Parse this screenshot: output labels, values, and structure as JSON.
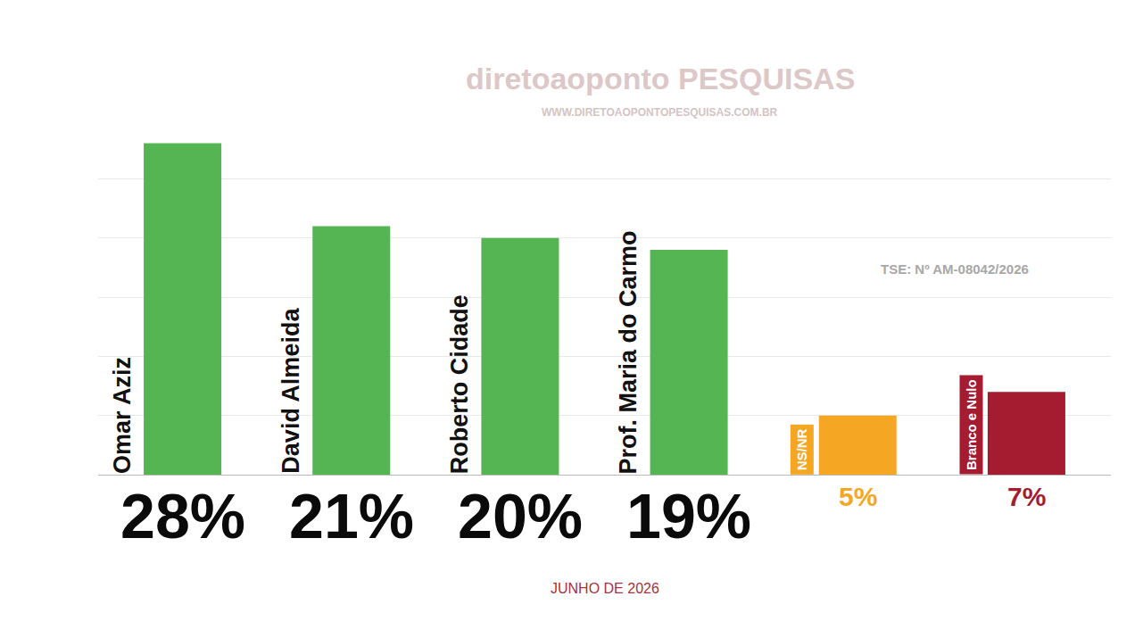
{
  "chart_data": {
    "type": "bar",
    "categories": [
      "Omar Aziz",
      "David Almeida",
      "Roberto Cidade",
      "Prof. Maria do Carmo",
      "NS/NR",
      "Branco e Nulo"
    ],
    "values": [
      28,
      21,
      20,
      19,
      5,
      7
    ],
    "value_labels": [
      "28%",
      "21%",
      "20%",
      "19%",
      "5%",
      "7%"
    ],
    "colors": [
      "#55b552",
      "#55b552",
      "#55b552",
      "#55b552",
      "#f5a623",
      "#a51c30"
    ],
    "ylim": [
      0,
      30
    ],
    "yticks": [
      0,
      5,
      10,
      15,
      20,
      25,
      30
    ],
    "grid": true,
    "tick_labels": false,
    "data_labels": true,
    "subtitle": "JUNHO DE 2026",
    "annotations": [
      "diretoaoponto PESQUISAS",
      "WWW.DIRETOAOPONTOPESQUISAS.COM.BR",
      "TSE: Nº AM-08042/2026"
    ]
  }
}
